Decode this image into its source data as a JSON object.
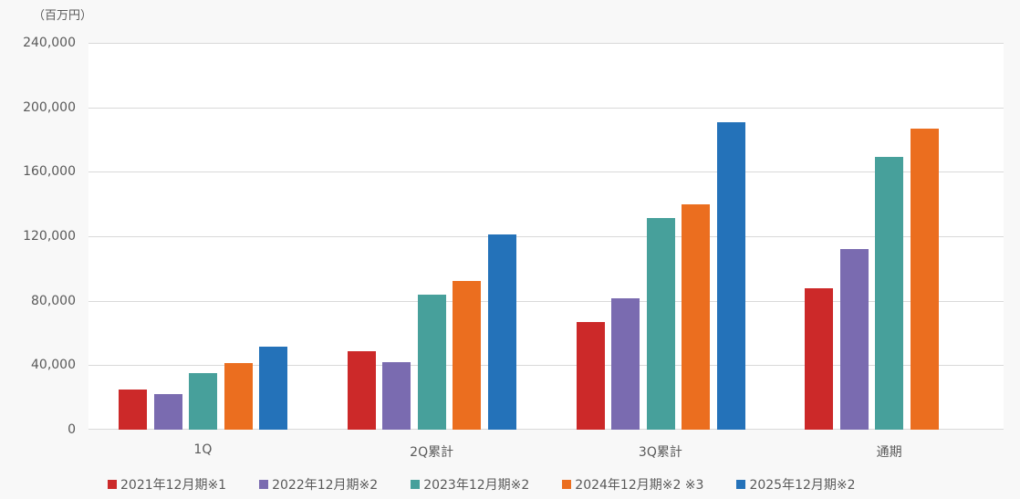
{
  "chart_data": {
    "type": "bar",
    "title": "",
    "unit_label": "（百万円）",
    "xlabel": "",
    "ylabel": "",
    "ylim": [
      0,
      240000
    ],
    "yticks": [
      0,
      40000,
      80000,
      120000,
      160000,
      200000,
      240000
    ],
    "ytick_labels": [
      "0",
      "40,000",
      "80,000",
      "120,000",
      "160,000",
      "200,000",
      "240,000"
    ],
    "grid": true,
    "legend_position": "bottom",
    "categories": [
      "1Q",
      "2Q累計",
      "3Q累計",
      "通期"
    ],
    "series": [
      {
        "name": "2021年12月期※1",
        "color": "#cc2929",
        "values": [
          24800,
          48600,
          66800,
          87900
        ]
      },
      {
        "name": "2022年12月期※2",
        "color": "#7a6bb0",
        "values": [
          22000,
          41800,
          81500,
          112300
        ]
      },
      {
        "name": "2023年12月期※2",
        "color": "#47a09b",
        "values": [
          35000,
          83800,
          131400,
          169000
        ]
      },
      {
        "name": "2024年12月期※2 ※3",
        "color": "#eb6e1f",
        "values": [
          41300,
          92300,
          140000,
          186600
        ]
      },
      {
        "name": "2025年12月期※2",
        "color": "#2472b9",
        "values": [
          51500,
          121200,
          191000,
          null
        ]
      }
    ]
  }
}
